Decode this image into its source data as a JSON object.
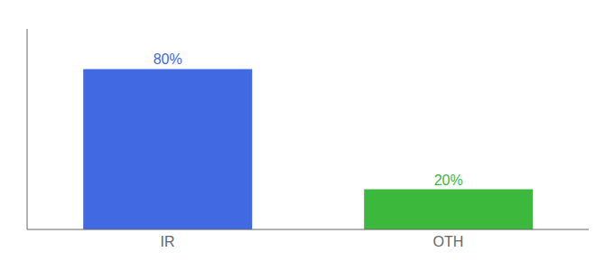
{
  "chart_data": {
    "type": "bar",
    "categories": [
      "IR",
      "OTH"
    ],
    "values": [
      80,
      20
    ],
    "value_labels": [
      "80%",
      "20%"
    ],
    "colors": [
      "#4169e1",
      "#3cb83c"
    ],
    "ylim": [
      0,
      100
    ],
    "data_labels": true,
    "tick_labels": "x",
    "grid": false
  }
}
